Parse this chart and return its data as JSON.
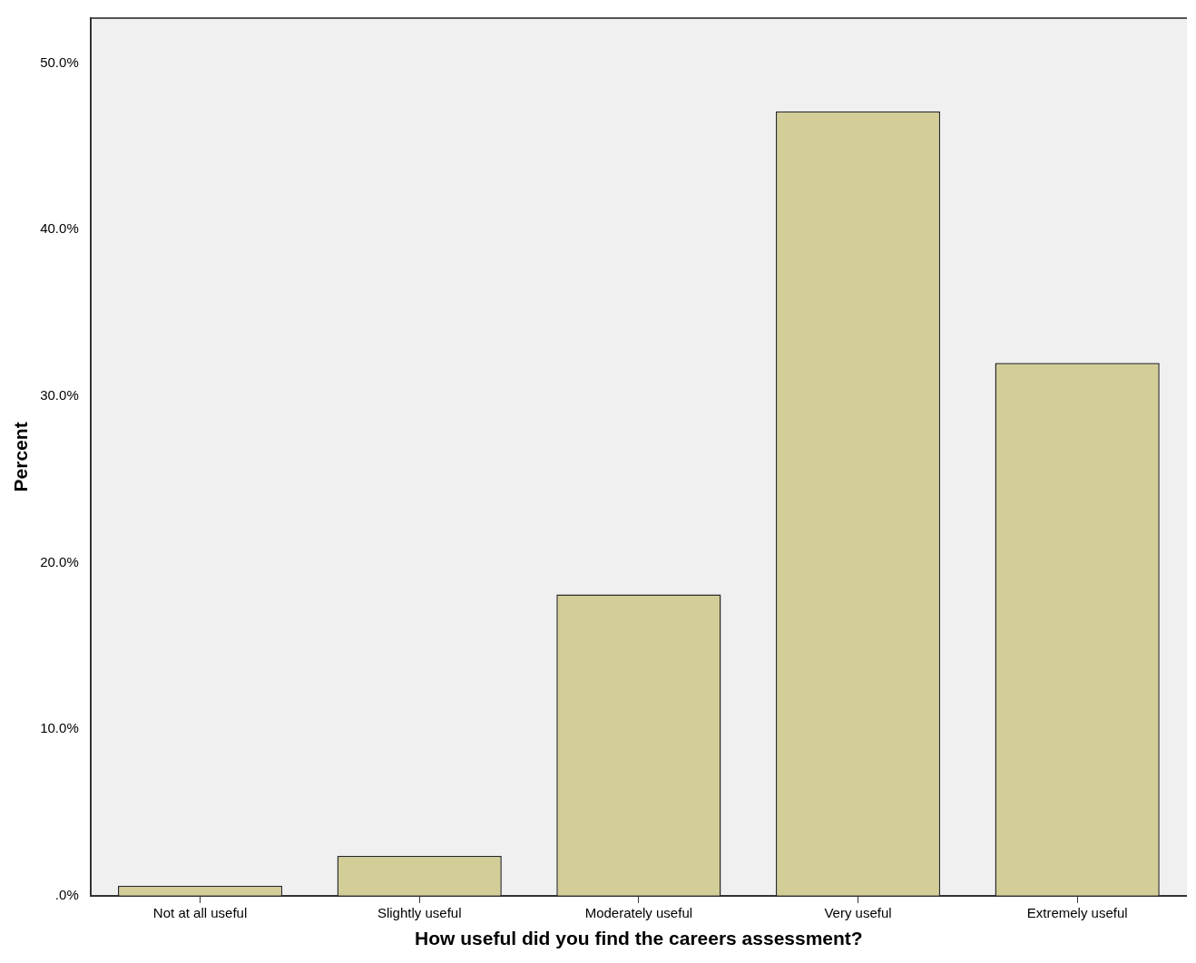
{
  "chart_data": {
    "type": "bar",
    "xlabel": "How useful did you find the careers assessment?",
    "ylabel": "Percent",
    "categories": [
      "Not at all useful",
      "Slightly useful",
      "Moderately useful",
      "Very useful",
      "Extremely useful"
    ],
    "values": [
      0.6,
      2.4,
      18.1,
      47.1,
      32.0
    ],
    "color": "#d3ce97",
    "ylim": [
      0,
      52.7
    ],
    "yticks": [
      {
        "value": 0,
        "label": ".0%"
      },
      {
        "value": 10,
        "label": "10.0%"
      },
      {
        "value": 20,
        "label": "20.0%"
      },
      {
        "value": 30,
        "label": "30.0%"
      },
      {
        "value": 40,
        "label": "40.0%"
      },
      {
        "value": 50,
        "label": "50.0%"
      }
    ],
    "grid": false,
    "legend": false
  }
}
